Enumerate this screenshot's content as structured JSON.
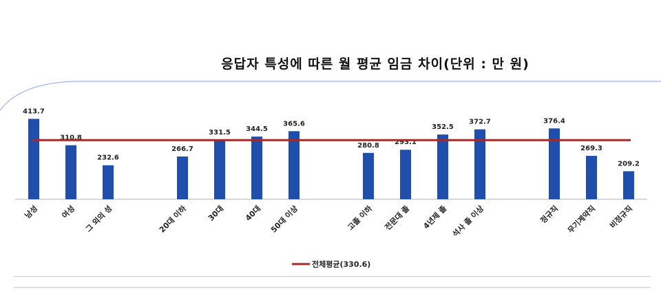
{
  "chart_data": {
    "type": "bar",
    "title": "응답자 특성에 따른 월 평균 임금 차이(단위 : 만 원)",
    "categories": [
      "남성",
      "여성",
      "그 외의 성",
      "20대 이하",
      "30대",
      "40대",
      "50대 이상",
      "고졸 이하",
      "전문대 졸",
      "4년제 졸",
      "석사 졸 이상",
      "정규직",
      "무기계약직",
      "비정규직"
    ],
    "groups": [
      [
        0,
        1,
        2
      ],
      [
        3,
        4,
        5,
        6
      ],
      [
        7,
        8,
        9,
        10
      ],
      [
        11,
        12,
        13
      ]
    ],
    "values": [
      413.7,
      310.8,
      232.6,
      266.7,
      331.5,
      344.5,
      365.6,
      280.8,
      293.1,
      352.5,
      372.7,
      376.4,
      269.3,
      209.2
    ],
    "value_labels": [
      "413.7",
      "310.8",
      "232.6",
      "266.7",
      "331.5",
      "344.5",
      "365.6",
      "280.8",
      "293.1",
      "352.5",
      "372.7",
      "376.4",
      "269.3",
      "209.2"
    ],
    "reference_line": {
      "name": "전체평균(330.6)",
      "value": 330.6,
      "color": "#A52A2A"
    },
    "ylim": [
      100,
      430
    ],
    "bar_color": "#1F4EAD",
    "grid": false,
    "legend": "bottom",
    "xlabel": "",
    "ylabel": ""
  }
}
